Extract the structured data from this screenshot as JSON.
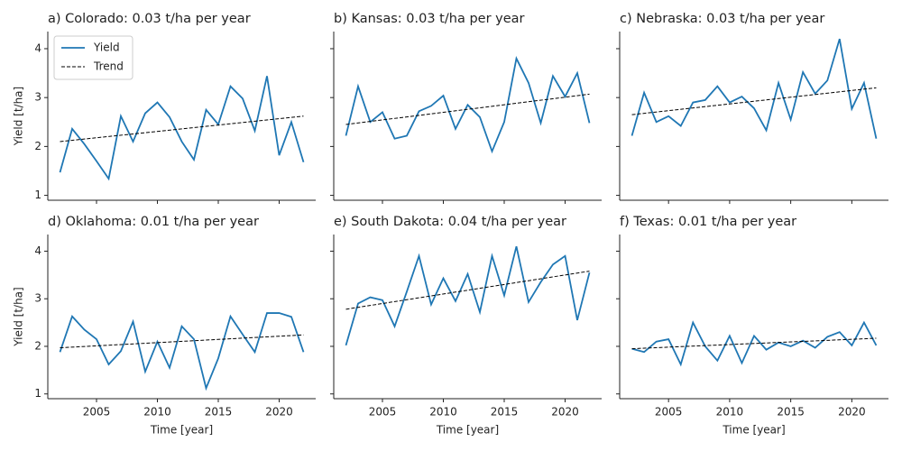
{
  "chart_data": [
    {
      "type": "line",
      "title": "a) Colorado: 0.03 t/ha per year",
      "ylabel": "Yield [t/ha]",
      "x": [
        2002,
        2003,
        2004,
        2005,
        2006,
        2007,
        2008,
        2009,
        2010,
        2011,
        2012,
        2013,
        2014,
        2015,
        2016,
        2017,
        2018,
        2019,
        2020,
        2021,
        2022
      ],
      "series": [
        {
          "name": "Yield",
          "color": "#1f77b4",
          "values": [
            1.47,
            2.36,
            2.05,
            1.7,
            1.34,
            2.62,
            2.1,
            2.68,
            2.9,
            2.6,
            2.1,
            1.73,
            2.75,
            2.45,
            3.23,
            2.98,
            2.32,
            3.44,
            1.82,
            2.5,
            1.68
          ]
        },
        {
          "name": "Trend",
          "color": "#000000",
          "dashed": true,
          "x": [
            2002,
            2022
          ],
          "values": [
            2.1,
            2.62
          ]
        }
      ],
      "legend": "upper left",
      "xlim": [
        2001,
        2023
      ],
      "ylim": [
        0.9,
        4.35
      ],
      "xticks": [
        2005,
        2010,
        2015,
        2020
      ],
      "yticks": [
        1,
        2,
        3,
        4
      ]
    },
    {
      "type": "line",
      "title": "b) Kansas: 0.03 t/ha per year",
      "x": [
        2002,
        2003,
        2004,
        2005,
        2006,
        2007,
        2008,
        2009,
        2010,
        2011,
        2012,
        2013,
        2014,
        2015,
        2016,
        2017,
        2018,
        2019,
        2020,
        2021,
        2022
      ],
      "series": [
        {
          "color": "#1f77b4",
          "values": [
            2.22,
            3.23,
            2.5,
            2.7,
            2.16,
            2.22,
            2.72,
            2.83,
            3.04,
            2.36,
            2.85,
            2.6,
            1.9,
            2.5,
            3.8,
            3.3,
            2.48,
            3.44,
            3.02,
            3.5,
            2.48
          ]
        },
        {
          "color": "#000000",
          "dashed": true,
          "x": [
            2002,
            2022
          ],
          "values": [
            2.45,
            3.07
          ]
        }
      ],
      "xlim": [
        2001,
        2023
      ],
      "ylim": [
        0.9,
        4.35
      ],
      "xticks": [
        2005,
        2010,
        2015,
        2020
      ],
      "yticks": [
        1,
        2,
        3,
        4
      ]
    },
    {
      "type": "line",
      "title": "c) Nebraska: 0.03 t/ha per year",
      "x": [
        2002,
        2003,
        2004,
        2005,
        2006,
        2007,
        2008,
        2009,
        2010,
        2011,
        2012,
        2013,
        2014,
        2015,
        2016,
        2017,
        2018,
        2019,
        2020,
        2021,
        2022
      ],
      "series": [
        {
          "color": "#1f77b4",
          "values": [
            2.22,
            3.1,
            2.5,
            2.62,
            2.42,
            2.9,
            2.95,
            3.23,
            2.9,
            3.02,
            2.78,
            2.33,
            3.3,
            2.55,
            3.52,
            3.08,
            3.35,
            4.2,
            2.77,
            3.3,
            2.16
          ]
        },
        {
          "color": "#000000",
          "dashed": true,
          "x": [
            2002,
            2022
          ],
          "values": [
            2.65,
            3.2
          ]
        }
      ],
      "xlim": [
        2001,
        2023
      ],
      "ylim": [
        0.9,
        4.35
      ],
      "xticks": [
        2005,
        2010,
        2015,
        2020
      ],
      "yticks": [
        1,
        2,
        3,
        4
      ]
    },
    {
      "type": "line",
      "title": "d) Oklahoma: 0.01 t/ha per year",
      "ylabel": "Yield [t/ha]",
      "xlabel": "Time [year]",
      "x": [
        2002,
        2003,
        2004,
        2005,
        2006,
        2007,
        2008,
        2009,
        2010,
        2011,
        2012,
        2013,
        2014,
        2015,
        2016,
        2017,
        2018,
        2019,
        2020,
        2021,
        2022
      ],
      "series": [
        {
          "color": "#1f77b4",
          "values": [
            1.88,
            2.63,
            2.35,
            2.15,
            1.62,
            1.9,
            2.52,
            1.47,
            2.1,
            1.55,
            2.42,
            2.15,
            1.12,
            1.75,
            2.63,
            2.25,
            1.88,
            2.7,
            2.7,
            2.62,
            1.88
          ]
        },
        {
          "color": "#000000",
          "dashed": true,
          "x": [
            2002,
            2022
          ],
          "values": [
            1.97,
            2.24
          ]
        }
      ],
      "xlim": [
        2001,
        2023
      ],
      "ylim": [
        0.9,
        4.35
      ],
      "xticks": [
        2005,
        2010,
        2015,
        2020
      ],
      "yticks": [
        1,
        2,
        3,
        4
      ]
    },
    {
      "type": "line",
      "title": "e) South Dakota: 0.04 t/ha per year",
      "xlabel": "Time [year]",
      "x": [
        2002,
        2003,
        2004,
        2005,
        2006,
        2007,
        2008,
        2009,
        2010,
        2011,
        2012,
        2013,
        2014,
        2015,
        2016,
        2017,
        2018,
        2019,
        2020,
        2021,
        2022
      ],
      "series": [
        {
          "color": "#1f77b4",
          "values": [
            2.02,
            2.9,
            3.03,
            2.97,
            2.42,
            3.15,
            3.9,
            2.88,
            3.43,
            2.95,
            3.52,
            2.72,
            3.9,
            3.07,
            4.1,
            2.93,
            3.35,
            3.72,
            3.9,
            2.55,
            3.55
          ]
        },
        {
          "color": "#000000",
          "dashed": true,
          "x": [
            2002,
            2022
          ],
          "values": [
            2.78,
            3.58
          ]
        }
      ],
      "xlim": [
        2001,
        2023
      ],
      "ylim": [
        0.9,
        4.35
      ],
      "xticks": [
        2005,
        2010,
        2015,
        2020
      ],
      "yticks": [
        1,
        2,
        3,
        4
      ]
    },
    {
      "type": "line",
      "title": "f) Texas: 0.01 t/ha per year",
      "xlabel": "Time [year]",
      "x": [
        2002,
        2003,
        2004,
        2005,
        2006,
        2007,
        2008,
        2009,
        2010,
        2011,
        2012,
        2013,
        2014,
        2015,
        2016,
        2017,
        2018,
        2019,
        2020,
        2021,
        2022
      ],
      "series": [
        {
          "color": "#1f77b4",
          "values": [
            1.95,
            1.88,
            2.1,
            2.15,
            1.62,
            2.5,
            2.0,
            1.7,
            2.22,
            1.65,
            2.22,
            1.93,
            2.08,
            2.0,
            2.12,
            1.97,
            2.2,
            2.3,
            2.02,
            2.5,
            2.02
          ]
        },
        {
          "color": "#000000",
          "dashed": true,
          "x": [
            2002,
            2022
          ],
          "values": [
            1.95,
            2.17
          ]
        }
      ],
      "xlim": [
        2001,
        2023
      ],
      "ylim": [
        0.9,
        4.35
      ],
      "xticks": [
        2005,
        2010,
        2015,
        2020
      ],
      "yticks": [
        1,
        2,
        3,
        4
      ]
    }
  ]
}
